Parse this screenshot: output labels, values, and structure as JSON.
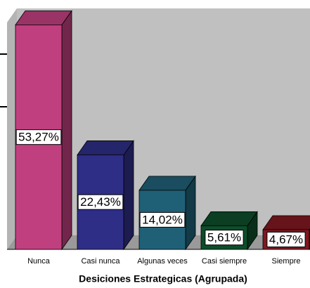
{
  "chart_data": {
    "type": "bar3d",
    "x_label": "Desiciones Estrategicas (Agrupada)",
    "categories": [
      "Nunca",
      "Casi nunca",
      "Algunas veces",
      "Casi siempre",
      "Siempre"
    ],
    "values": [
      53.27,
      22.43,
      14.02,
      5.61,
      4.67
    ],
    "value_labels": [
      "53,27%",
      "22,43%",
      "14,02%",
      "5,61%",
      "4,67%"
    ],
    "colors": [
      "#c0407f",
      "#2e2e86",
      "#1f6077",
      "#0e4d2a",
      "#7f1820"
    ],
    "ylim": [
      0,
      57
    ]
  }
}
